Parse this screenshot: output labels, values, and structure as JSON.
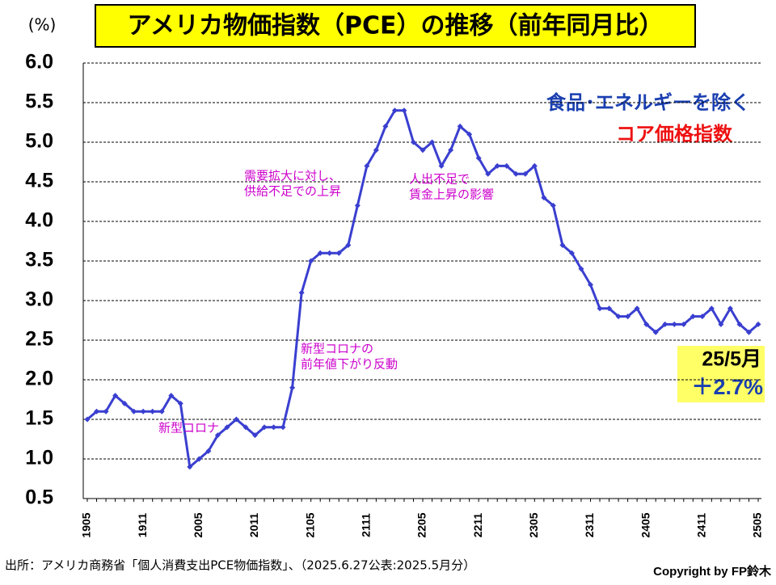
{
  "chart_data": {
    "type": "line",
    "title": "アメリカ物価指数（PCE）の推移（前年同月比）",
    "y_unit": "(%)",
    "legend_lines": [
      "食品･エネルギーを除く",
      "コア価格指数"
    ],
    "categories": [
      "1905",
      null,
      null,
      null,
      null,
      null,
      "1911",
      null,
      null,
      null,
      null,
      null,
      "2005",
      null,
      null,
      null,
      null,
      null,
      "2011",
      null,
      null,
      null,
      null,
      null,
      "2105",
      null,
      null,
      null,
      null,
      null,
      "2111",
      null,
      null,
      null,
      null,
      null,
      "2205",
      null,
      null,
      null,
      null,
      null,
      "2211",
      null,
      null,
      null,
      null,
      null,
      "2305",
      null,
      null,
      null,
      null,
      null,
      "2311",
      null,
      null,
      null,
      null,
      null,
      "2405",
      null,
      null,
      null,
      null,
      null,
      "2411",
      null,
      null,
      null,
      null,
      null,
      "2505"
    ],
    "series": [
      {
        "name": "コア価格指数",
        "color": "#3a3fd0",
        "values": [
          1.5,
          1.6,
          1.6,
          1.8,
          1.7,
          1.6,
          1.6,
          1.6,
          1.6,
          1.8,
          1.7,
          0.9,
          1.0,
          1.1,
          1.3,
          1.4,
          1.5,
          1.4,
          1.3,
          1.4,
          1.4,
          1.4,
          1.9,
          3.1,
          3.5,
          3.6,
          3.6,
          3.6,
          3.7,
          4.2,
          4.7,
          4.9,
          5.2,
          5.4,
          5.4,
          5.0,
          4.9,
          5.0,
          4.7,
          4.9,
          5.2,
          5.1,
          4.8,
          4.6,
          4.7,
          4.7,
          4.6,
          4.6,
          4.7,
          4.3,
          4.2,
          3.7,
          3.6,
          3.4,
          3.2,
          2.9,
          2.9,
          2.8,
          2.8,
          2.9,
          2.7,
          2.6,
          2.7,
          2.7,
          2.7,
          2.8,
          2.8,
          2.9,
          2.7,
          2.9,
          2.7,
          2.6,
          2.7
        ]
      }
    ],
    "ylim": [
      0.5,
      6.0
    ],
    "yticks": [
      0.5,
      {
        "value": 1.0,
        "label": "1.0"
      },
      1.5,
      {
        "value": 2.0,
        "label": "2.0"
      },
      2.5,
      {
        "value": 3.0,
        "label": "3.0"
      },
      3.5,
      {
        "value": 4.0,
        "label": "4.0"
      },
      4.5,
      {
        "value": 5.0,
        "label": "5.0"
      },
      5.5,
      {
        "value": 6.0,
        "label": "6.0"
      }
    ],
    "grid": true,
    "annotations": [
      {
        "lines": [
          "新型コロナ"
        ]
      },
      {
        "lines": [
          "新型コロナの",
          "前年値下がり反動"
        ]
      },
      {
        "lines": [
          "需要拡大に対し、",
          "供給不足での上昇"
        ]
      },
      {
        "lines": [
          "人出不足で",
          "賃金上昇の影響"
        ]
      }
    ],
    "latest_label": [
      "25/5月",
      "＋2.7%"
    ],
    "source": "出所：アメリカ商務省「個人消費支出PCE物価指数」、（2025.6.27公表:2025.5月分）",
    "copyright": "Copyright by FP鈴木"
  }
}
